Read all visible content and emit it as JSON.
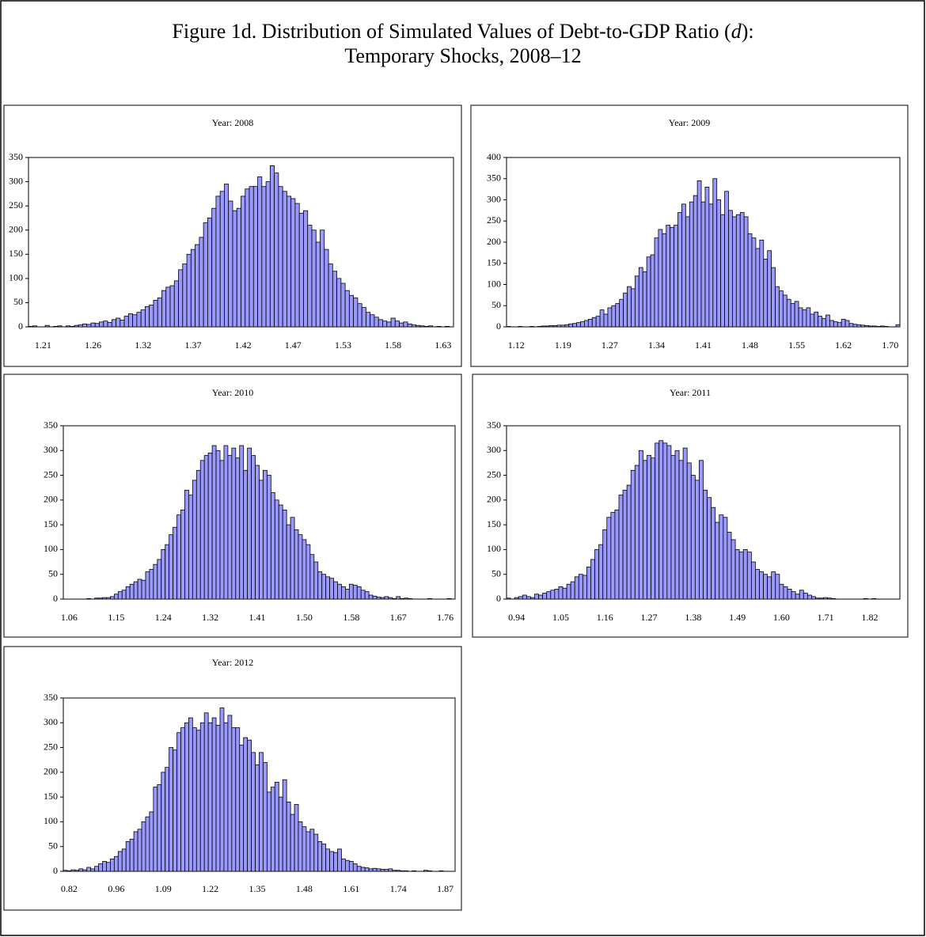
{
  "title": {
    "text": "Figure 1d. Distribution of Simulated Values of Debt-to-GDP Ratio (",
    "variable": "d",
    "after": "):",
    "subtitle": "Temporary Shocks, 2008–12"
  },
  "chart_data": [
    {
      "type": "bar",
      "title": "Year: 2008",
      "color": "#9999ff",
      "ylim": [
        0,
        350
      ],
      "yticks": [
        0,
        50,
        100,
        150,
        200,
        250,
        300,
        350
      ],
      "categories": [
        null,
        null,
        null,
        "1.21",
        null,
        null,
        null,
        null,
        null,
        null,
        null,
        null,
        null,
        null,
        null,
        "1.26",
        null,
        null,
        null,
        null,
        null,
        null,
        null,
        null,
        null,
        null,
        null,
        "1.32",
        null,
        null,
        null,
        null,
        null,
        null,
        null,
        null,
        null,
        null,
        null,
        "1.37",
        null,
        null,
        null,
        null,
        null,
        null,
        null,
        null,
        null,
        null,
        null,
        "1.42",
        null,
        null,
        null,
        null,
        null,
        null,
        null,
        null,
        null,
        null,
        null,
        "1.47",
        null,
        null,
        null,
        null,
        null,
        null,
        null,
        null,
        null,
        null,
        null,
        "1.53",
        null,
        null,
        null,
        null,
        null,
        null,
        null,
        null,
        null,
        null,
        null,
        "1.58",
        null,
        null,
        null,
        null,
        null,
        null,
        null,
        null,
        null,
        null,
        null,
        "1.63",
        null,
        null
      ],
      "values": [
        1,
        2,
        0,
        0,
        3,
        0,
        1,
        2,
        0,
        2,
        1,
        3,
        4,
        6,
        5,
        8,
        7,
        10,
        12,
        9,
        15,
        18,
        14,
        22,
        27,
        25,
        30,
        35,
        42,
        45,
        55,
        60,
        75,
        82,
        85,
        95,
        118,
        130,
        150,
        160,
        170,
        185,
        215,
        225,
        245,
        270,
        280,
        295,
        260,
        240,
        245,
        270,
        285,
        290,
        290,
        310,
        290,
        300,
        333,
        318,
        290,
        280,
        270,
        265,
        255,
        235,
        240,
        210,
        200,
        175,
        200,
        160,
        130,
        115,
        100,
        90,
        75,
        65,
        60,
        48,
        40,
        30,
        25,
        20,
        15,
        12,
        10,
        18,
        12,
        8,
        10,
        6,
        4,
        3,
        2,
        1,
        2,
        0,
        1,
        0,
        1,
        0
      ]
    },
    {
      "type": "bar",
      "title": "Year: 2009",
      "color": "#9999ff",
      "ylim": [
        0,
        400
      ],
      "yticks": [
        0,
        50,
        100,
        150,
        200,
        250,
        300,
        350,
        400
      ],
      "categories": [
        null,
        null,
        "1.12",
        null,
        null,
        null,
        null,
        null,
        null,
        null,
        null,
        null,
        null,
        null,
        "1.19",
        null,
        null,
        null,
        null,
        null,
        null,
        null,
        null,
        null,
        null,
        null,
        "1.27",
        null,
        null,
        null,
        null,
        null,
        null,
        null,
        null,
        null,
        null,
        null,
        "1.34",
        null,
        null,
        null,
        null,
        null,
        null,
        null,
        null,
        null,
        null,
        null,
        "1.41",
        null,
        null,
        null,
        null,
        null,
        null,
        null,
        null,
        null,
        null,
        null,
        "1.48",
        null,
        null,
        null,
        null,
        null,
        null,
        null,
        null,
        null,
        null,
        null,
        "1.55",
        null,
        null,
        null,
        null,
        null,
        null,
        null,
        null,
        null,
        null,
        null,
        "1.62",
        null,
        null,
        null,
        null,
        null,
        null,
        null,
        null,
        null,
        null,
        null,
        "1.70",
        null,
        null
      ],
      "values": [
        1,
        0,
        0,
        1,
        0,
        0,
        1,
        0,
        1,
        2,
        2,
        3,
        3,
        4,
        4,
        5,
        7,
        8,
        10,
        12,
        15,
        18,
        22,
        25,
        40,
        30,
        45,
        50,
        55,
        65,
        80,
        95,
        90,
        120,
        140,
        130,
        165,
        170,
        210,
        230,
        220,
        240,
        235,
        240,
        270,
        290,
        260,
        295,
        310,
        345,
        295,
        330,
        290,
        350,
        300,
        265,
        320,
        275,
        260,
        265,
        270,
        260,
        220,
        210,
        185,
        205,
        160,
        180,
        140,
        95,
        85,
        75,
        65,
        55,
        60,
        45,
        40,
        45,
        30,
        35,
        25,
        20,
        28,
        15,
        12,
        10,
        18,
        15,
        8,
        6,
        5,
        4,
        3,
        2,
        2,
        1,
        2,
        1,
        0,
        0,
        5
      ]
    },
    {
      "type": "bar",
      "title": "Year: 2010",
      "color": "#9999ff",
      "ylim": [
        0,
        350
      ],
      "yticks": [
        0,
        50,
        100,
        150,
        200,
        250,
        300,
        350
      ],
      "categories": [
        null,
        "1.06",
        null,
        null,
        null,
        null,
        null,
        null,
        null,
        null,
        null,
        null,
        null,
        "1.15",
        null,
        null,
        null,
        null,
        null,
        null,
        null,
        null,
        null,
        null,
        null,
        "1.24",
        null,
        null,
        null,
        null,
        null,
        null,
        null,
        null,
        null,
        null,
        null,
        "1.32",
        null,
        null,
        null,
        null,
        null,
        null,
        null,
        null,
        null,
        null,
        null,
        "1.41",
        null,
        null,
        null,
        null,
        null,
        null,
        null,
        null,
        null,
        null,
        null,
        "1.50",
        null,
        null,
        null,
        null,
        null,
        null,
        null,
        null,
        null,
        null,
        null,
        "1.58",
        null,
        null,
        null,
        null,
        null,
        null,
        null,
        null,
        null,
        null,
        null,
        "1.67",
        null,
        null,
        null,
        null,
        null,
        null,
        null,
        null,
        null,
        null,
        null,
        "1.76",
        null,
        null
      ],
      "values": [
        0,
        0,
        0,
        0,
        0,
        0,
        1,
        0,
        2,
        2,
        3,
        3,
        5,
        10,
        15,
        18,
        25,
        30,
        35,
        40,
        38,
        55,
        60,
        70,
        80,
        100,
        110,
        130,
        145,
        170,
        180,
        220,
        210,
        240,
        260,
        280,
        290,
        295,
        310,
        300,
        280,
        310,
        290,
        305,
        285,
        310,
        260,
        305,
        290,
        270,
        240,
        260,
        250,
        215,
        200,
        190,
        180,
        150,
        165,
        140,
        130,
        120,
        110,
        90,
        75,
        55,
        50,
        45,
        42,
        35,
        30,
        25,
        20,
        30,
        28,
        25,
        18,
        15,
        8,
        6,
        4,
        3,
        5,
        3,
        1,
        5,
        1,
        2,
        1,
        0,
        0,
        0,
        0,
        1,
        0,
        0,
        0,
        0,
        1,
        0
      ]
    },
    {
      "type": "bar",
      "title": "Year: 2011",
      "color": "#9999ff",
      "ylim": [
        0,
        350
      ],
      "yticks": [
        0,
        50,
        100,
        150,
        200,
        250,
        300,
        350
      ],
      "categories": [
        null,
        null,
        "0.94",
        null,
        null,
        null,
        null,
        null,
        null,
        null,
        null,
        null,
        null,
        "1.05",
        null,
        null,
        null,
        null,
        null,
        null,
        null,
        null,
        null,
        null,
        "1.16",
        null,
        null,
        null,
        null,
        null,
        null,
        null,
        null,
        null,
        null,
        "1.27",
        null,
        null,
        null,
        null,
        null,
        null,
        null,
        null,
        null,
        null,
        "1.38",
        null,
        null,
        null,
        null,
        null,
        null,
        null,
        null,
        null,
        null,
        "1.49",
        null,
        null,
        null,
        null,
        null,
        null,
        null,
        null,
        null,
        null,
        "1.60",
        null,
        null,
        null,
        null,
        null,
        null,
        null,
        null,
        null,
        null,
        "1.71",
        null,
        null,
        null,
        null,
        null,
        null,
        null,
        null,
        null,
        null,
        "1.82",
        null,
        null,
        null,
        null,
        null,
        null,
        null
      ],
      "values": [
        2,
        0,
        3,
        5,
        8,
        5,
        3,
        10,
        8,
        12,
        15,
        18,
        20,
        25,
        22,
        30,
        35,
        45,
        50,
        48,
        65,
        80,
        100,
        110,
        140,
        165,
        175,
        180,
        210,
        220,
        230,
        260,
        270,
        300,
        280,
        290,
        285,
        315,
        320,
        315,
        310,
        290,
        300,
        280,
        305,
        275,
        250,
        240,
        280,
        220,
        205,
        185,
        155,
        170,
        165,
        135,
        120,
        100,
        95,
        100,
        95,
        75,
        60,
        55,
        50,
        45,
        55,
        50,
        30,
        25,
        20,
        15,
        10,
        18,
        12,
        8,
        5,
        2,
        2,
        3,
        2,
        1,
        0,
        0,
        0,
        0,
        0,
        0,
        0,
        1,
        0,
        1,
        0,
        0,
        0,
        0,
        0,
        0
      ]
    },
    {
      "type": "bar",
      "title": "Year: 2012",
      "color": "#9999ff",
      "ylim": [
        0,
        350
      ],
      "yticks": [
        0,
        50,
        100,
        150,
        200,
        250,
        300,
        350
      ],
      "categories": [
        null,
        "0.82",
        null,
        null,
        null,
        null,
        null,
        null,
        null,
        null,
        null,
        null,
        null,
        "0.96",
        null,
        null,
        null,
        null,
        null,
        null,
        null,
        null,
        null,
        null,
        null,
        "1.09",
        null,
        null,
        null,
        null,
        null,
        null,
        null,
        null,
        null,
        null,
        null,
        "1.22",
        null,
        null,
        null,
        null,
        null,
        null,
        null,
        null,
        null,
        null,
        null,
        "1.35",
        null,
        null,
        null,
        null,
        null,
        null,
        null,
        null,
        null,
        null,
        null,
        "1.48",
        null,
        null,
        null,
        null,
        null,
        null,
        null,
        null,
        null,
        null,
        null,
        "1.61",
        null,
        null,
        null,
        null,
        null,
        null,
        null,
        null,
        null,
        null,
        null,
        "1.74",
        null,
        null,
        null,
        null,
        null,
        null,
        null,
        null,
        null,
        null,
        null,
        "1.87",
        null,
        null
      ],
      "values": [
        2,
        1,
        3,
        2,
        5,
        3,
        8,
        5,
        10,
        15,
        20,
        18,
        25,
        30,
        40,
        45,
        60,
        65,
        80,
        85,
        100,
        110,
        120,
        170,
        175,
        200,
        210,
        250,
        245,
        280,
        290,
        300,
        310,
        290,
        285,
        300,
        320,
        300,
        310,
        295,
        330,
        300,
        315,
        290,
        290,
        255,
        270,
        265,
        240,
        215,
        240,
        220,
        160,
        170,
        180,
        150,
        185,
        140,
        115,
        135,
        100,
        90,
        80,
        85,
        75,
        60,
        55,
        45,
        40,
        38,
        45,
        25,
        22,
        20,
        15,
        10,
        8,
        7,
        5,
        6,
        5,
        4,
        4,
        5,
        2,
        2,
        1,
        1,
        0,
        1,
        0,
        0,
        2,
        1,
        0,
        0,
        1,
        0,
        0,
        0
      ]
    }
  ]
}
